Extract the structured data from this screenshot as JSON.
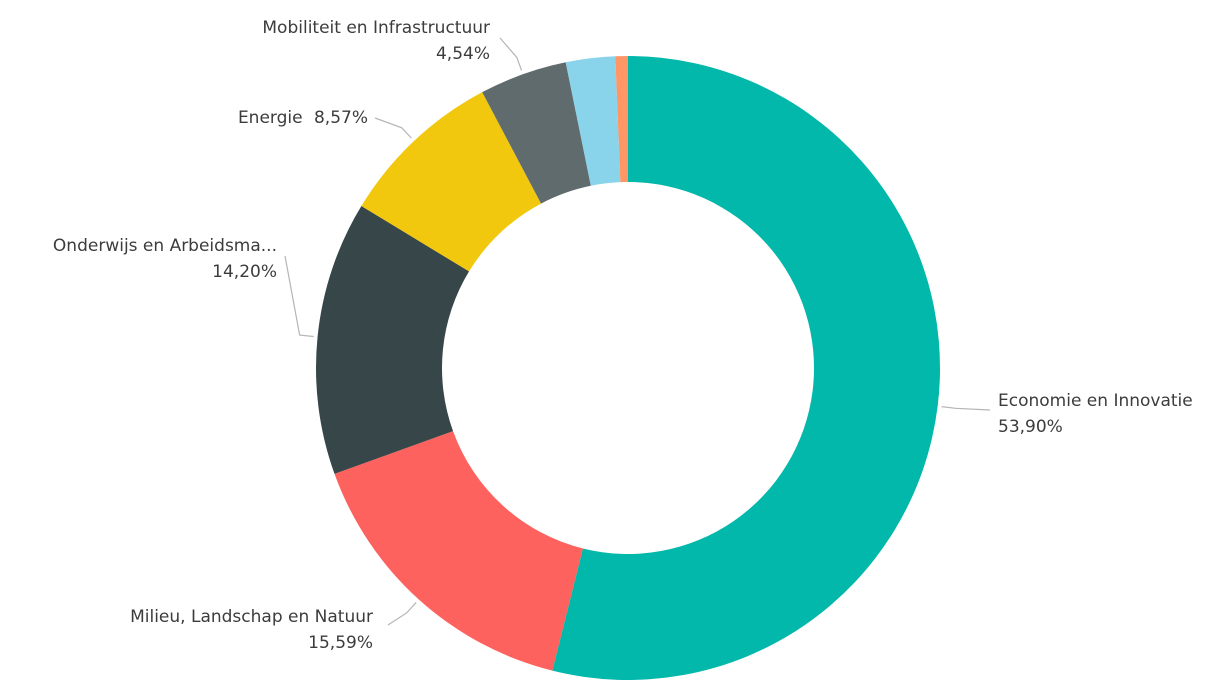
{
  "chart_data": {
    "type": "pie",
    "variant": "donut",
    "legend": "none",
    "slices": [
      {
        "label": "Economie en Innovatie",
        "value": 53.9,
        "value_text": "53,90%",
        "color": "#01B8AA"
      },
      {
        "label": "Milieu, Landschap en Natuur",
        "value": 15.59,
        "value_text": "15,59%",
        "color": "#FD625E"
      },
      {
        "label": "Onderwijs en Arbeidsma...",
        "value": 14.2,
        "value_text": "14,20%",
        "color": "#374649"
      },
      {
        "label": "Energie",
        "value": 8.57,
        "value_text": "8,57%",
        "color": "#F2C80F"
      },
      {
        "label": "Mobiliteit en Infrastructuur",
        "value": 4.54,
        "value_text": "4,54%",
        "color": "#5F6B6D"
      },
      {
        "value": 2.55,
        "color": "#8AD4EB"
      },
      {
        "value": 0.65,
        "color": "#FE9666"
      }
    ]
  }
}
